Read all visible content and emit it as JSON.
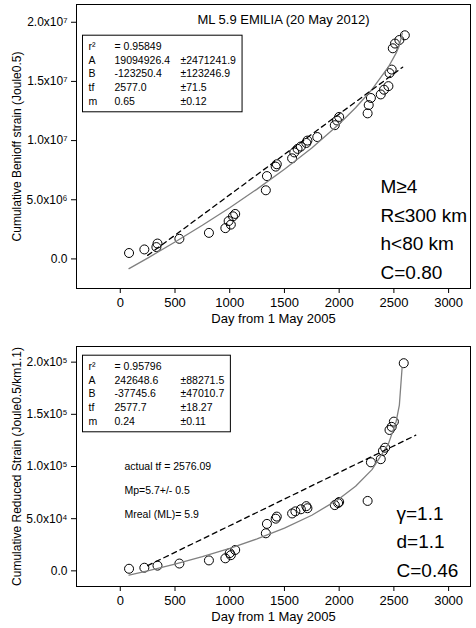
{
  "chart_data": [
    {
      "type": "scatter",
      "title": "ML 5.9 EMILIA (20 May 2012)",
      "x_label": "Day from 1 May 2005",
      "y_label": "Cumulative Benioff strain (Joule0.5)",
      "xlim": [
        -400,
        3200
      ],
      "xticks": [
        0,
        500,
        1000,
        1500,
        2000,
        2500,
        3000
      ],
      "ylim": [
        -2500000,
        21500000
      ],
      "yticks": [
        {
          "value": 0,
          "label": "0.0"
        },
        {
          "value": 5000000,
          "label": "5.0x10⁶"
        },
        {
          "value": 10000000,
          "label": "1.0x10⁷"
        },
        {
          "value": 15000000,
          "label": "1.5x10⁷"
        },
        {
          "value": 20000000,
          "label": "2.0x10⁷"
        }
      ],
      "grid": false,
      "series": [
        {
          "type": "scatter",
          "color": "#000000",
          "marker": "circle",
          "x": [
            80,
            220,
            330,
            340,
            540,
            810,
            960,
            990,
            1010,
            1030,
            1050,
            1330,
            1340,
            1420,
            1430,
            1570,
            1590,
            1620,
            1650,
            1700,
            1710,
            1800,
            1960,
            1980,
            2000,
            2260,
            2270,
            2290,
            2380,
            2410,
            2450,
            2460,
            2480,
            2490,
            2510,
            2550,
            2600
          ],
          "values": [
            500000,
            800000,
            1000000,
            1300000,
            1700000,
            2200000,
            2600000,
            3200000,
            2900000,
            3600000,
            3800000,
            5800000,
            7000000,
            7800000,
            8000000,
            8500000,
            9000000,
            9300000,
            9500000,
            9800000,
            10000000,
            10300000,
            11300000,
            11700000,
            12000000,
            12300000,
            13000000,
            13600000,
            13900000,
            14300000,
            14600000,
            15700000,
            16000000,
            17800000,
            18200000,
            18500000,
            18900000
          ]
        },
        {
          "type": "line",
          "color": "#808080",
          "line_style": "solid",
          "x": [
            80,
            250,
            500,
            750,
            1000,
            1250,
            1500,
            1750,
            2000,
            2150,
            2300,
            2450,
            2520,
            2550,
            2577
          ],
          "values": [
            -820000,
            70000,
            1430000,
            2840000,
            4330000,
            5900000,
            7570000,
            9380000,
            11400000,
            12770000,
            14320000,
            16220000,
            17390000,
            18040000,
            19090000
          ]
        },
        {
          "type": "line",
          "color": "#000000",
          "line_style": "dashed",
          "x": [
            250,
            2580
          ],
          "values": [
            300000,
            16200000
          ]
        }
      ],
      "fit_box": [
        [
          "r²",
          "= 0.95849"
        ],
        [
          "A",
          "19094926.4",
          "±2471241.9"
        ],
        [
          "B",
          "-123250.4",
          "±123246.9"
        ],
        [
          "tf",
          "2577.0",
          "±71.5"
        ],
        [
          "m",
          "0.65",
          "±0.12"
        ]
      ],
      "annotations": [
        "M≥4",
        "R≤300 km",
        "h<80 km",
        "C=0.80"
      ]
    },
    {
      "type": "scatter",
      "x_label": "Day from 1 May 2005",
      "y_label": "Cumulative Reduced Strain (Joule0.5/km1.1)",
      "xlim": [
        -400,
        3200
      ],
      "xticks": [
        0,
        500,
        1000,
        1500,
        2000,
        2500,
        3000
      ],
      "ylim": [
        -15000,
        215000
      ],
      "yticks": [
        {
          "value": 0,
          "label": "0.0"
        },
        {
          "value": 50000,
          "label": "5.0x10⁴"
        },
        {
          "value": 100000,
          "label": "1.0x10⁵"
        },
        {
          "value": 150000,
          "label": "1.5x10⁵"
        },
        {
          "value": 200000,
          "label": "2.0x10⁵"
        }
      ],
      "grid": false,
      "series": [
        {
          "type": "scatter",
          "color": "#000000",
          "marker": "circle",
          "x": [
            80,
            220,
            340,
            540,
            810,
            960,
            1000,
            1010,
            1050,
            1330,
            1340,
            1420,
            1430,
            1570,
            1600,
            1650,
            1700,
            1710,
            1960,
            1990,
            2000,
            2260,
            2290,
            2380,
            2400,
            2420,
            2460,
            2480,
            2500,
            2590
          ],
          "values": [
            2000,
            3000,
            5000,
            7000,
            10000,
            12000,
            17000,
            15000,
            20000,
            36000,
            45000,
            50000,
            52000,
            55000,
            57000,
            59000,
            62000,
            60000,
            63000,
            65000,
            66000,
            67000,
            104000,
            107000,
            115000,
            118000,
            135000,
            138000,
            143000,
            199000
          ]
        },
        {
          "type": "line",
          "color": "#808080",
          "line_style": "solid",
          "x": [
            80,
            250,
            500,
            750,
            1000,
            1250,
            1500,
            1750,
            2000,
            2150,
            2300,
            2450,
            2520,
            2550,
            2575
          ],
          "values": [
            -4100,
            0,
            6500,
            13700,
            21600,
            30600,
            40900,
            53300,
            69000,
            81100,
            97000,
            121700,
            142800,
            158900,
            194700
          ]
        },
        {
          "type": "line",
          "color": "#000000",
          "line_style": "dashed",
          "x": [
            250,
            2700
          ],
          "values": [
            5000,
            130000
          ]
        }
      ],
      "fit_box": [
        [
          "r²",
          "= 0.95796"
        ],
        [
          "A",
          "242648.6",
          "±88271.5"
        ],
        [
          "B",
          "-37745.6",
          "±47010.7"
        ],
        [
          "tf",
          "2577.7",
          "±18.27"
        ],
        [
          "m",
          "0.24",
          "±0.11"
        ]
      ],
      "fit_notes": [
        "actual tf = 2576.09",
        "Mp=5.7+/- 0.5",
        "Mreal (ML)= 5.9"
      ],
      "annotations": [
        "γ=1.1",
        "d=1.1",
        "C=0.46"
      ]
    }
  ]
}
